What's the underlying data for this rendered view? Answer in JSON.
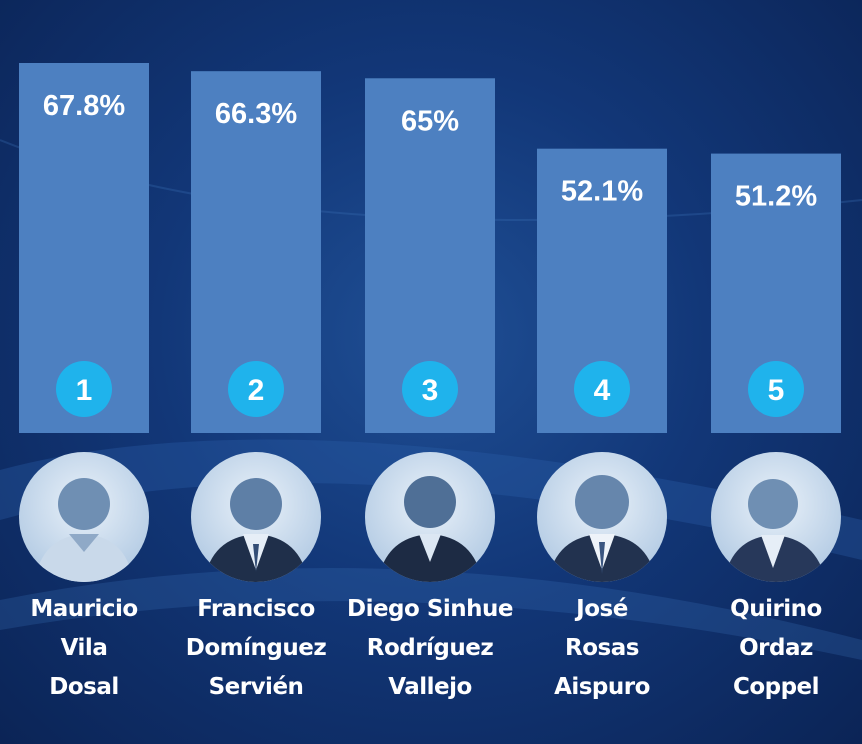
{
  "chart_data": {
    "type": "bar",
    "categories": [
      "Mauricio Vila Dosal",
      "Francisco Domínguez Servién",
      "Diego Sinhue Rodríguez Vallejo",
      "José Rosas Aispuro",
      "Quirino Ordaz Coppel"
    ],
    "values": [
      67.8,
      66.3,
      65,
      52.1,
      51.2
    ],
    "value_labels": [
      "67.8%",
      "66.3%",
      "65%",
      "52.1%",
      "51.2%"
    ],
    "ranks": [
      "1",
      "2",
      "3",
      "4",
      "5"
    ],
    "name_lines": [
      [
        "Mauricio",
        "Vila",
        "Dosal"
      ],
      [
        "Francisco",
        "Domínguez",
        "Servién"
      ],
      [
        "Diego Sinhue",
        "Rodríguez",
        "Vallejo"
      ],
      [
        "José",
        "Rosas",
        "Aispuro"
      ],
      [
        "Quirino",
        "Ordaz",
        "Coppel"
      ]
    ],
    "bar_color": "#4d80c1",
    "badge_color": "#1fb3ec",
    "title": "",
    "xlabel": "",
    "ylabel": "",
    "grid": false,
    "legend": "none"
  }
}
